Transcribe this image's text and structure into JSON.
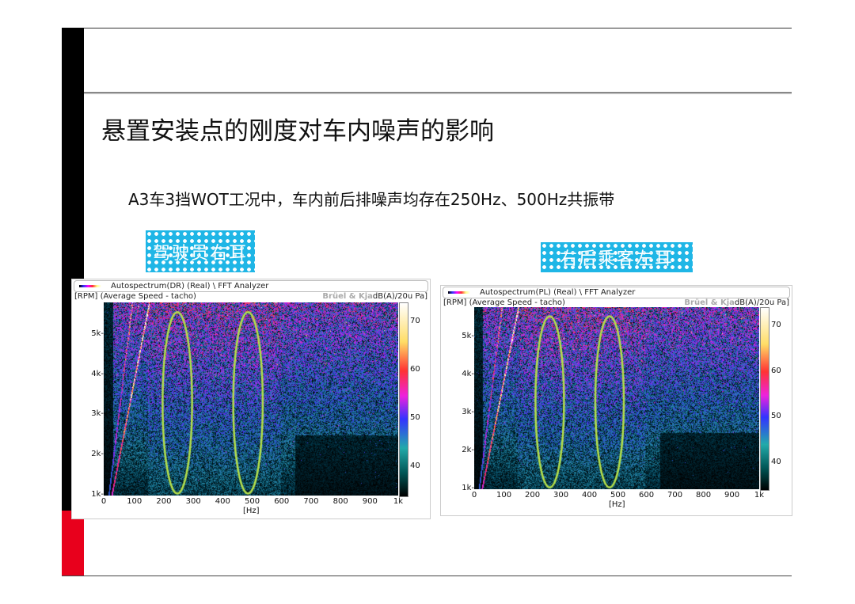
{
  "slide": {
    "title": "悬置安装点的刚度对车内噪声的影响",
    "subtitle": "A3车3挡WOT工况中，车内前后排噪声均存在250Hz、500Hz共振带",
    "colors": {
      "left_bar": "#000000",
      "accent_bar": "#e8001c",
      "tag_bg": "#1fb6e6",
      "ellipse": "#b5e04a"
    }
  },
  "charts": [
    {
      "tag": "驾驶员右耳",
      "header": "Autospectrum(DR) (Real) \\ FFT Analyzer",
      "y_label": "[RPM] (Average Speed - tacho)",
      "brand": "Brüel & Kja",
      "unit": "dB(A)/20u Pa]",
      "x_ticks": [
        "0",
        "100",
        "200",
        "300",
        "400",
        "500",
        "600",
        "700",
        "800",
        "900",
        "1k"
      ],
      "x_unit": "[Hz]",
      "y_ticks": [
        "1k",
        "2k",
        "3k",
        "4k",
        "5k"
      ],
      "colorbar_ticks": [
        "70",
        "60",
        "50",
        "40"
      ],
      "highlight_hz": [
        250,
        490
      ]
    },
    {
      "tag": "右后乘客左耳",
      "header": "Autospectrum(PL) (Real) \\ FFT Analyzer",
      "y_label": "[RPM] (Average Speed - tacho)",
      "brand": "Brüel & Kja",
      "unit": "dB(A)/20u Pa]",
      "x_ticks": [
        "0",
        "100",
        "200",
        "300",
        "400",
        "500",
        "600",
        "700",
        "800",
        "900",
        "1k"
      ],
      "x_unit": "[Hz]",
      "y_ticks": [
        "1k",
        "2k",
        "3k",
        "4k",
        "5k"
      ],
      "colorbar_ticks": [
        "70",
        "60",
        "50",
        "40"
      ],
      "highlight_hz": [
        265,
        475
      ]
    }
  ]
}
